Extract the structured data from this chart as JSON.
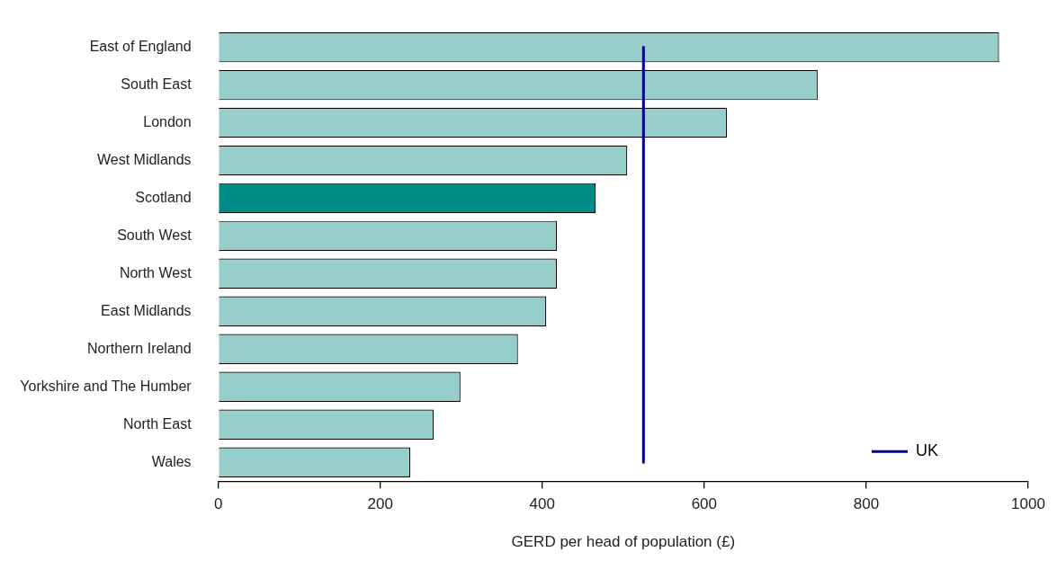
{
  "chart_data": {
    "type": "bar",
    "orientation": "horizontal",
    "xlabel": "GERD per head of population (£)",
    "categories": [
      "East of England",
      "South East",
      "London",
      "West Midlands",
      "Scotland",
      "South West",
      "North West",
      "East Midlands",
      "Northern Ireland",
      "Yorkshire and The Humber",
      "North East",
      "Wales"
    ],
    "series": [
      {
        "values": [
          964,
          740,
          628,
          505,
          466,
          418,
          418,
          405,
          370,
          299,
          266,
          237
        ],
        "colors": [
          "#96cecb",
          "#96cecb",
          "#96cecb",
          "#96cecb",
          "#008b87",
          "#96cecb",
          "#96cecb",
          "#96cecb",
          "#96cecb",
          "#96cecb",
          "#96cecb",
          "#96cecb"
        ]
      },
      {
        "type": "line",
        "name": "UK",
        "color": "#00008b",
        "values": [
          525,
          525,
          525,
          525,
          525,
          525,
          525,
          525,
          525,
          525,
          525,
          525
        ]
      }
    ],
    "xlim": [
      0,
      1000
    ],
    "xticks": [
      0,
      200,
      400,
      600,
      800,
      1000
    ],
    "grid": false,
    "legend": "bottom right",
    "marker": "none"
  }
}
